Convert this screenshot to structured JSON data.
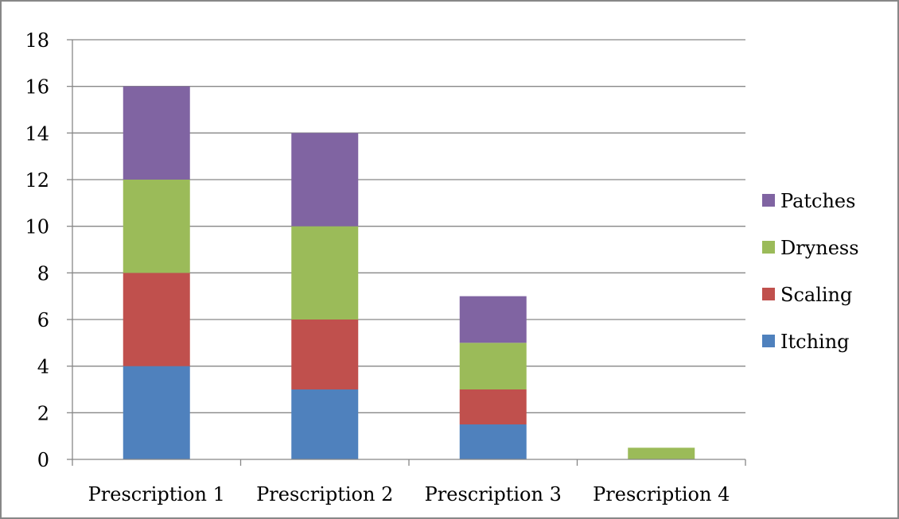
{
  "chart_data": {
    "type": "bar",
    "stacked": true,
    "title": "",
    "xlabel": "",
    "ylabel": "",
    "categories": [
      "Prescription 1",
      "Prescription 2",
      "Prescription 3",
      "Prescription 4"
    ],
    "series": [
      {
        "name": "Itching",
        "color": "#4F81BD",
        "values": [
          4,
          3,
          1.5,
          0
        ]
      },
      {
        "name": "Scaling",
        "color": "#C0504D",
        "values": [
          4,
          3,
          1.5,
          0
        ]
      },
      {
        "name": "Dryness",
        "color": "#9BBB59",
        "values": [
          4,
          4,
          2,
          0.5
        ]
      },
      {
        "name": "Patches",
        "color": "#8064A2",
        "values": [
          4,
          4,
          2,
          0
        ]
      }
    ],
    "ylim": [
      0,
      18
    ],
    "yticks": [
      "0",
      "2",
      "4",
      "6",
      "8",
      "10",
      "12",
      "14",
      "16",
      "18"
    ],
    "grid": true,
    "legend_position": "right",
    "legend_order": [
      "Patches",
      "Dryness",
      "Scaling",
      "Itching"
    ]
  }
}
